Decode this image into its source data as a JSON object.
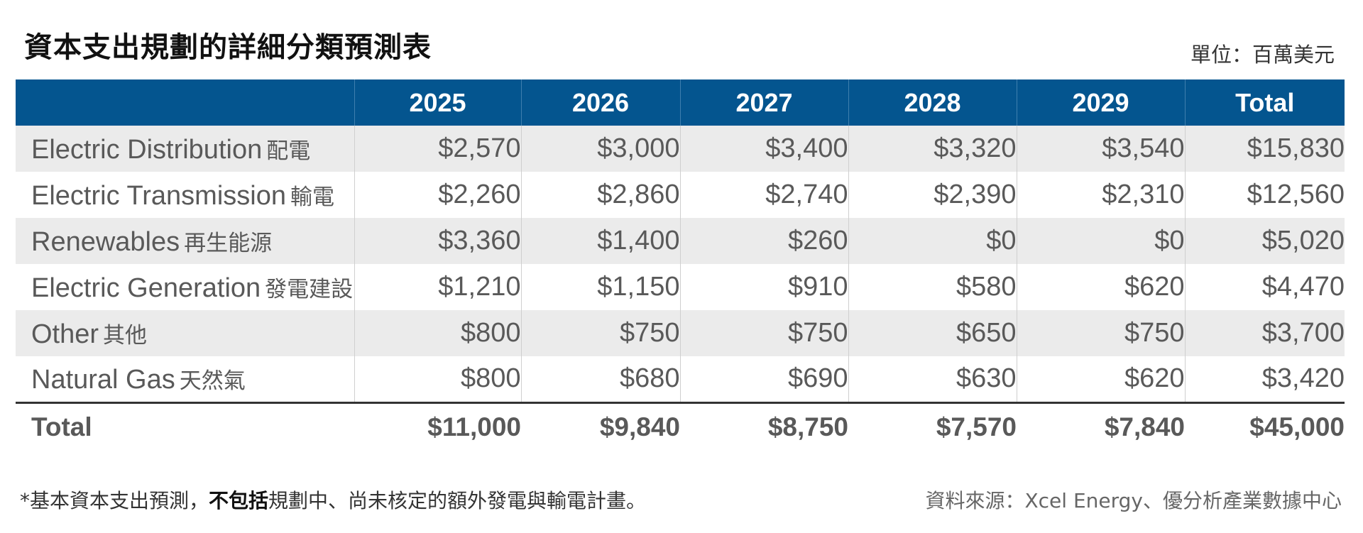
{
  "title": "資本支出規劃的詳細分類預測表",
  "unit": "單位：百萬美元",
  "table": {
    "headers": [
      "",
      "2025",
      "2026",
      "2027",
      "2028",
      "2029",
      "Total"
    ],
    "rows": [
      {
        "label_en": "Electric Distribution",
        "label_zh": "配電",
        "values": [
          "$2,570",
          "$3,000",
          "$3,400",
          "$3,320",
          "$3,540",
          "$15,830"
        ]
      },
      {
        "label_en": "Electric Transmission",
        "label_zh": "輸電",
        "values": [
          "$2,260",
          "$2,860",
          "$2,740",
          "$2,390",
          "$2,310",
          "$12,560"
        ]
      },
      {
        "label_en": "Renewables",
        "label_zh": "再生能源",
        "values": [
          "$3,360",
          "$1,400",
          "$260",
          "$0",
          "$0",
          "$5,020"
        ]
      },
      {
        "label_en": "Electric Generation",
        "label_zh": "發電建設",
        "values": [
          "$1,210",
          "$1,150",
          "$910",
          "$580",
          "$620",
          "$4,470"
        ]
      },
      {
        "label_en": "Other",
        "label_zh": "其他",
        "values": [
          "$800",
          "$750",
          "$750",
          "$650",
          "$750",
          "$3,700"
        ]
      },
      {
        "label_en": "Natural Gas",
        "label_zh": "天然氣",
        "values": [
          "$800",
          "$680",
          "$690",
          "$630",
          "$620",
          "$3,420"
        ]
      }
    ],
    "total": {
      "label": "Total",
      "values": [
        "$11,000",
        "$9,840",
        "$8,750",
        "$7,570",
        "$7,840",
        "$45,000"
      ]
    }
  },
  "footnote": {
    "prefix": "*基本資本支出預測，",
    "bold": "不包括",
    "suffix": "規劃中、尚未核定的額外發電與輸電計畫。"
  },
  "source": "資料來源：Xcel Energy、優分析產業數據中心",
  "colors": {
    "header_bg": "#04558f",
    "row_stripe": "#ebebeb",
    "text": "#595959"
  }
}
